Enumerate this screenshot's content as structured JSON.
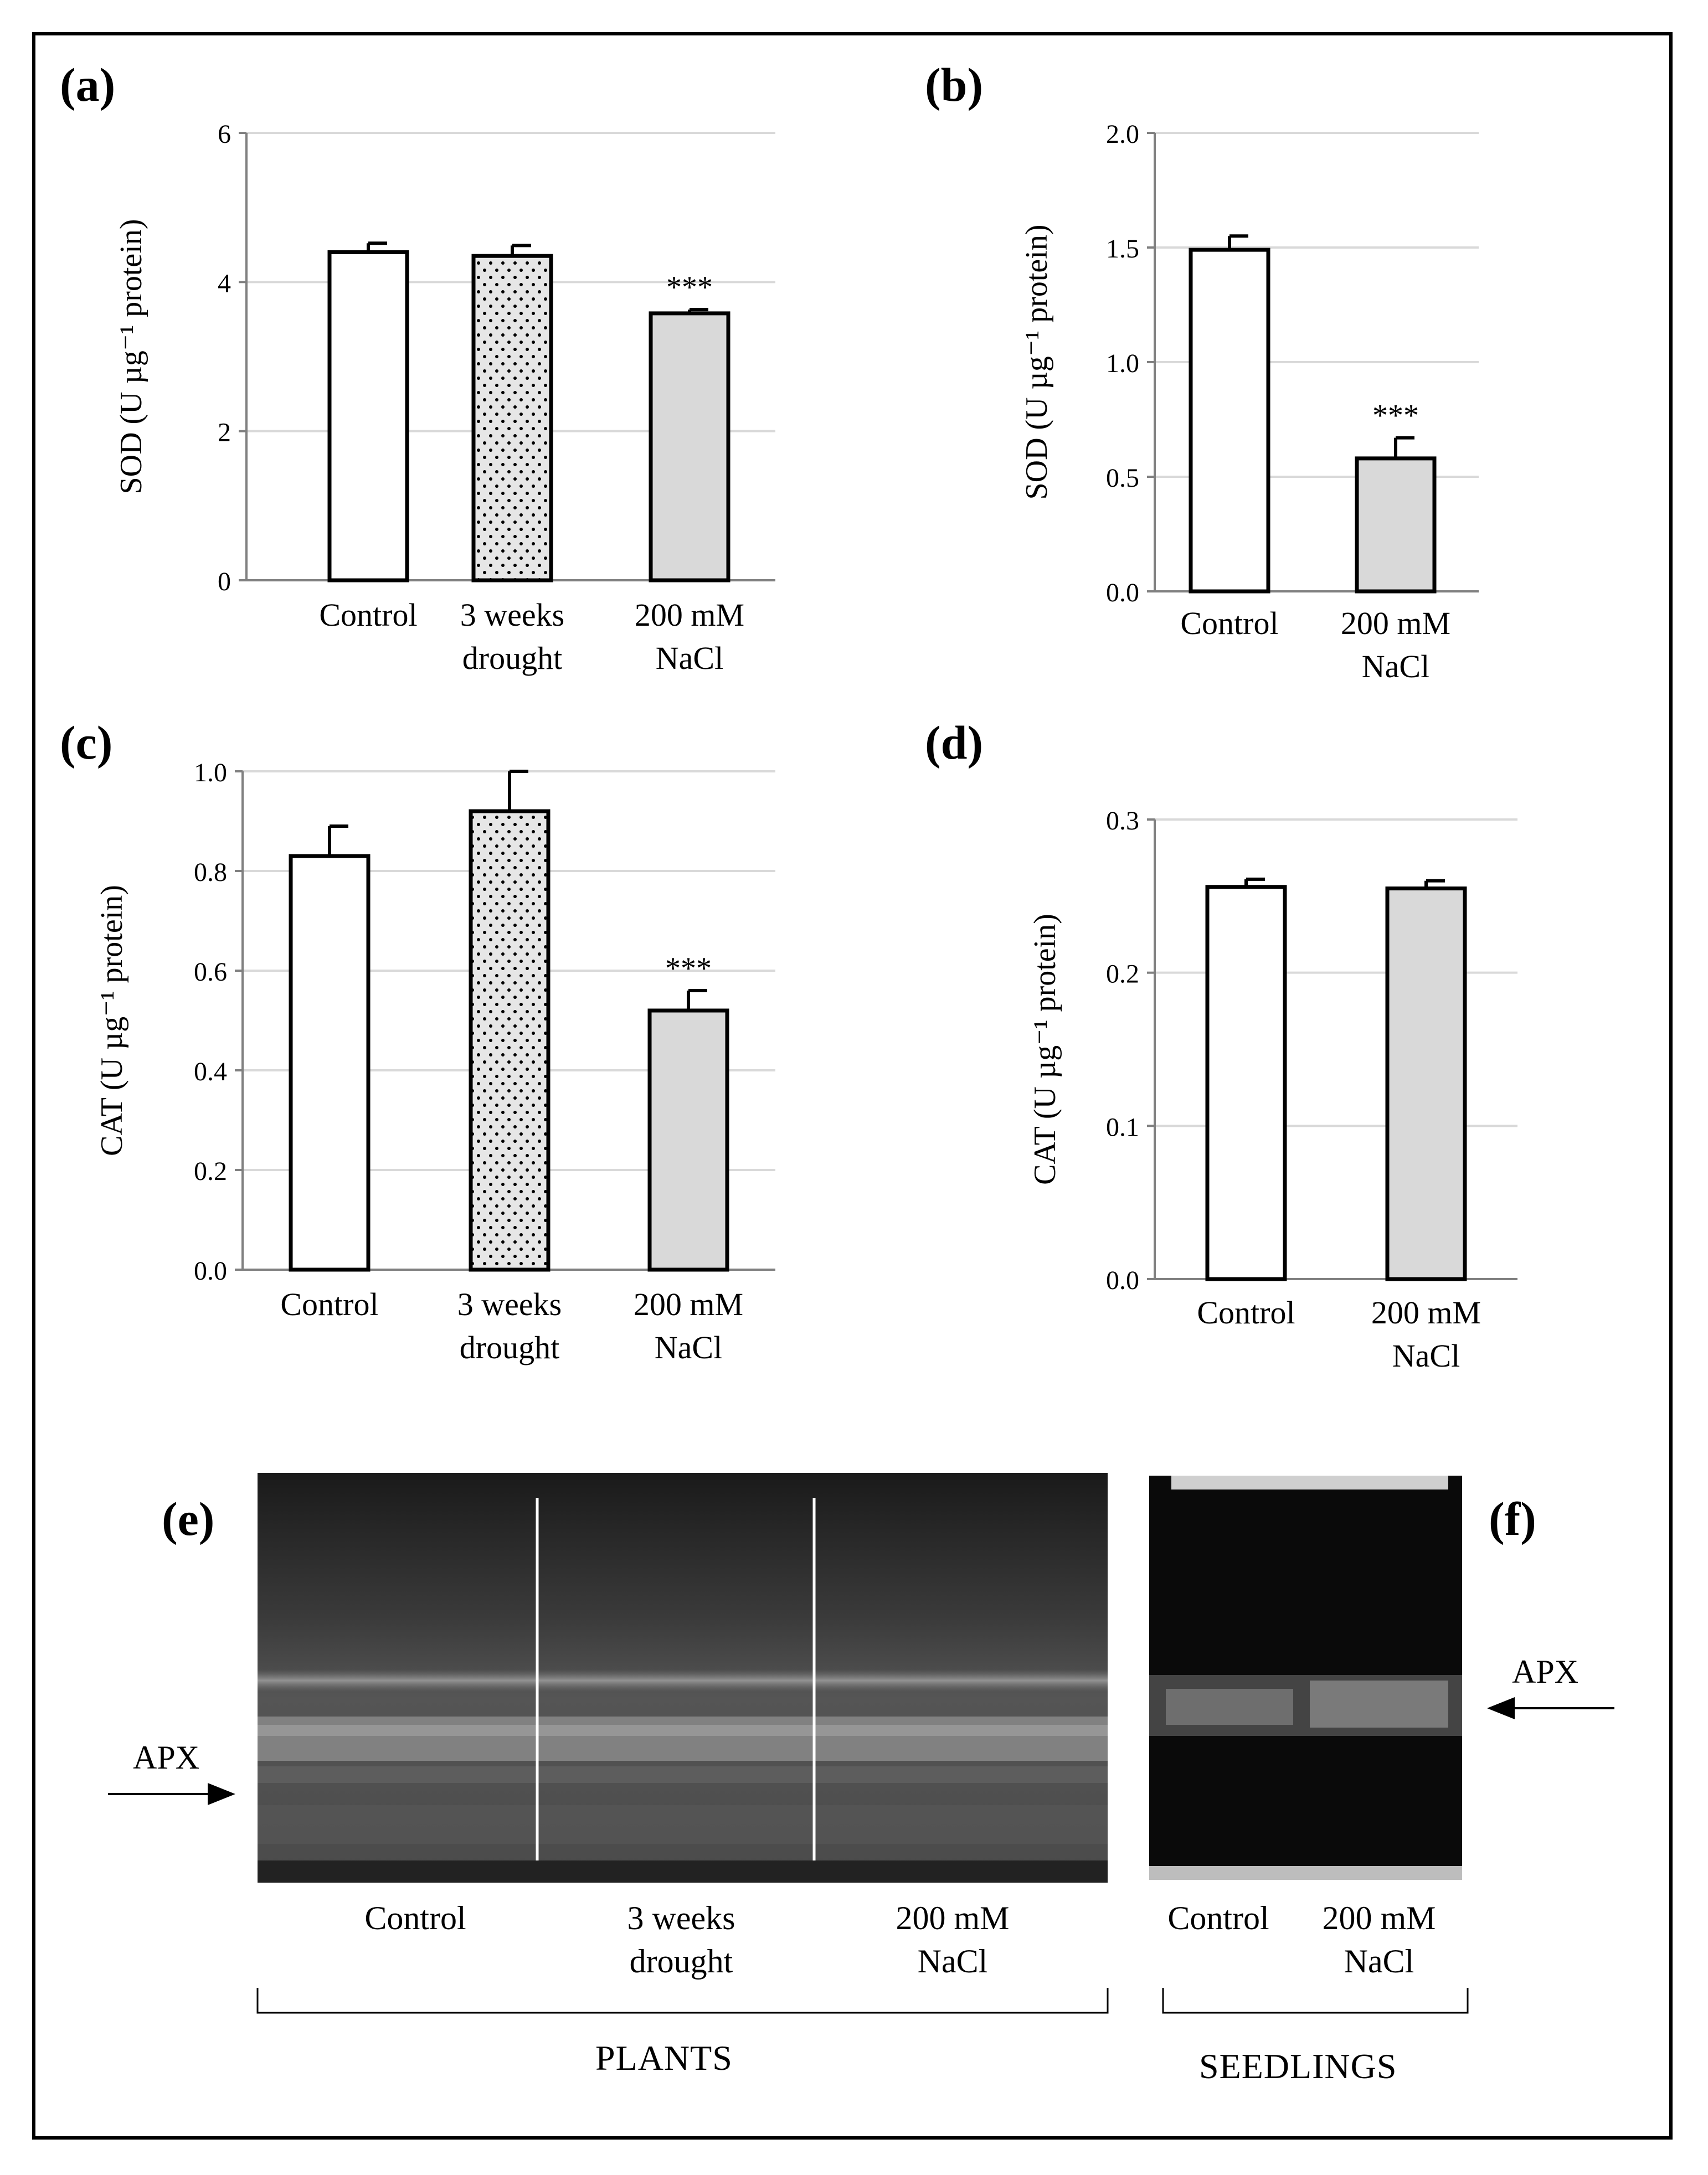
{
  "panel_labels": {
    "a": "(a)",
    "b": "(b)",
    "c": "(c)",
    "d": "(d)",
    "e": "(e)",
    "f": "(f)"
  },
  "chart_data": [
    {
      "id": "a",
      "type": "bar",
      "ylabel": "SOD (U µg⁻¹ protein)",
      "ylim": [
        0,
        6
      ],
      "yticks": [
        "0",
        "2",
        "4",
        "6"
      ],
      "categories": [
        [
          "Control"
        ],
        [
          "3 weeks",
          "drought"
        ],
        [
          "200 mM",
          "NaCl"
        ]
      ],
      "values": [
        4.4,
        4.35,
        3.58
      ],
      "errors": [
        0.12,
        0.14,
        0.05
      ],
      "fills": [
        "white",
        "dots",
        "gray"
      ],
      "annotations": [
        "",
        "",
        "***"
      ],
      "grid": true
    },
    {
      "id": "b",
      "type": "bar",
      "ylabel": "SOD (U µg⁻¹ protein)",
      "ylim": [
        0,
        2.0
      ],
      "yticks": [
        "0.0",
        "0.5",
        "1.0",
        "1.5",
        "2.0"
      ],
      "categories": [
        [
          "Control"
        ],
        [
          "200 mM",
          "NaCl"
        ]
      ],
      "values": [
        1.49,
        0.58
      ],
      "errors": [
        0.06,
        0.09
      ],
      "fills": [
        "white",
        "gray"
      ],
      "annotations": [
        "",
        "***"
      ],
      "grid": true
    },
    {
      "id": "c",
      "type": "bar",
      "ylabel": "CAT (U µg⁻¹ protein)",
      "ylim": [
        0,
        1.0
      ],
      "yticks": [
        "0.0",
        "0.2",
        "0.4",
        "0.6",
        "0.8",
        "1.0"
      ],
      "categories": [
        [
          "Control"
        ],
        [
          "3 weeks",
          "drought"
        ],
        [
          "200 mM",
          "NaCl"
        ]
      ],
      "values": [
        0.83,
        0.92,
        0.52
      ],
      "errors": [
        0.06,
        0.08,
        0.04
      ],
      "fills": [
        "white",
        "dots",
        "gray"
      ],
      "annotations": [
        "",
        "",
        "***"
      ],
      "grid": true
    },
    {
      "id": "d",
      "type": "bar",
      "ylabel": "CAT (U µg⁻¹ protein)",
      "ylim": [
        0,
        0.3
      ],
      "yticks": [
        "0.0",
        "0.1",
        "0.2",
        "0.3"
      ],
      "categories": [
        [
          "Control"
        ],
        [
          "200 mM",
          "NaCl"
        ]
      ],
      "values": [
        0.256,
        0.255
      ],
      "errors": [
        0.005,
        0.005
      ],
      "fills": [
        "white",
        "gray"
      ],
      "annotations": [
        "",
        ""
      ],
      "grid": true
    }
  ],
  "gels": {
    "e": {
      "marker": "APX",
      "lanes": [
        [
          "Control"
        ],
        [
          "3 weeks",
          "drought"
        ],
        [
          "200 mM",
          "NaCl"
        ]
      ],
      "group": "PLANTS"
    },
    "f": {
      "marker": "APX",
      "lanes": [
        [
          "Control"
        ],
        [
          "200 mM",
          "NaCl"
        ]
      ],
      "group": "SEEDLINGS"
    }
  },
  "colors": {
    "bar_gray": "#d9d9d9",
    "grid": "#d9d9d9",
    "axis": "#808080"
  }
}
